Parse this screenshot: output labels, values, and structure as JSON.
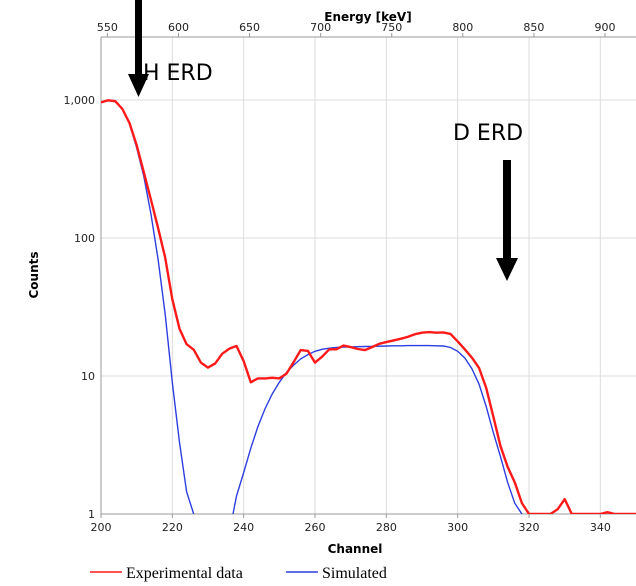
{
  "chart_data": {
    "type": "line",
    "xlabel": "Channel",
    "top_xlabel": "Energy [keV]",
    "ylabel": "Counts",
    "x_ticks": [
      "200",
      "220",
      "240",
      "260",
      "280",
      "300",
      "320",
      "340"
    ],
    "top_x_ticks": [
      "550",
      "600",
      "650",
      "700",
      "750",
      "800",
      "850",
      "900"
    ],
    "y_ticks": [
      "1",
      "10",
      "100",
      "1,000"
    ],
    "xlim": [
      200,
      350
    ],
    "ylim": [
      1,
      2000
    ],
    "yscale": "log",
    "grid": true,
    "annotations": [
      "H ERD",
      "D ERD"
    ],
    "legend_position": "bottom",
    "series": [
      {
        "name": "Experimental data",
        "color": "#ff1a1a",
        "x": [
          200,
          202,
          204,
          206,
          208,
          210,
          212,
          214,
          216,
          218,
          220,
          222,
          224,
          226,
          228,
          230,
          232,
          234,
          236,
          238,
          240,
          242,
          244,
          246,
          248,
          250,
          252,
          254,
          256,
          258,
          260,
          262,
          264,
          266,
          268,
          270,
          272,
          274,
          276,
          278,
          280,
          282,
          284,
          286,
          288,
          290,
          292,
          294,
          296,
          298,
          300,
          302,
          304,
          306,
          308,
          310,
          312,
          314,
          316,
          318,
          320,
          322,
          324,
          326,
          328,
          330,
          332,
          334,
          336,
          338,
          340,
          342,
          344,
          346,
          348,
          350
        ],
        "values": [
          960,
          995,
          980,
          860,
          680,
          470,
          300,
          190,
          118,
          72,
          36,
          22,
          17,
          15.5,
          12.5,
          11.5,
          12.3,
          14.5,
          15.8,
          16.5,
          12.8,
          9.0,
          9.6,
          9.6,
          9.7,
          9.6,
          10.4,
          12.6,
          15.4,
          15.2,
          12.5,
          13.8,
          15.6,
          15.6,
          16.6,
          16.2,
          15.7,
          15.4,
          16.2,
          17.1,
          17.6,
          18.1,
          18.6,
          19.2,
          20.1,
          20.6,
          20.8,
          20.6,
          20.7,
          20.2,
          17.8,
          15.6,
          13.6,
          11.4,
          8.2,
          5.1,
          3.1,
          2.2,
          1.7,
          1.2,
          1.0,
          1.0,
          1.0,
          1.0,
          1.08,
          1.28,
          1.0,
          1.0,
          1.0,
          1.0,
          1.0,
          1.03,
          1.0,
          1.0,
          1.0,
          1.0
        ]
      },
      {
        "name": "Simulated",
        "color": "#2c3ee0",
        "x": [
          200,
          202,
          204,
          206,
          208,
          210,
          212,
          214,
          216,
          218,
          220,
          222,
          224,
          226,
          237,
          238,
          240,
          242,
          244,
          246,
          248,
          250,
          252,
          254,
          256,
          258,
          260,
          262,
          264,
          266,
          268,
          270,
          272,
          274,
          276,
          278,
          280,
          282,
          284,
          286,
          288,
          290,
          292,
          294,
          296,
          298,
          300,
          302,
          304,
          306,
          308,
          310,
          312,
          314,
          316,
          318
        ],
        "values": [
          960,
          990,
          970,
          860,
          670,
          450,
          280,
          150,
          70,
          28,
          9,
          3.3,
          1.45,
          1.0,
          1.0,
          1.35,
          2.0,
          3.0,
          4.3,
          5.8,
          7.4,
          9.0,
          10.6,
          12.0,
          13.3,
          14.3,
          15.1,
          15.6,
          15.9,
          16.1,
          16.2,
          16.25,
          16.3,
          16.35,
          16.4,
          16.45,
          16.5,
          16.55,
          16.55,
          16.6,
          16.6,
          16.6,
          16.6,
          16.55,
          16.5,
          16.1,
          15.1,
          13.5,
          11.3,
          8.7,
          6.0,
          3.9,
          2.6,
          1.7,
          1.2,
          1.0
        ]
      }
    ]
  },
  "legend": {
    "experimental_label": "Experimental data",
    "simulated_label": "Simulated"
  }
}
